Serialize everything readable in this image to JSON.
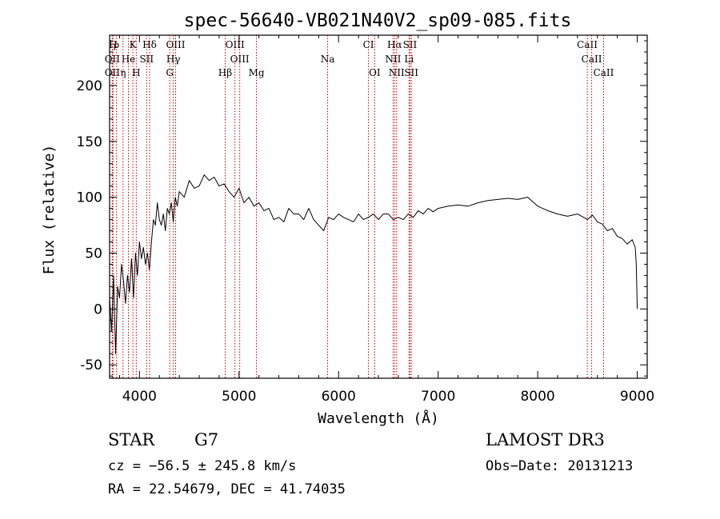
{
  "chart_data": {
    "type": "line",
    "title": "spec-56640-VB021N40V2_sp09-085.fits",
    "xlabel": "Wavelength (Å)",
    "ylabel": "Flux (relative)",
    "xlim": [
      3700,
      9100
    ],
    "ylim": [
      -62,
      245
    ],
    "x_ticks": [
      4000,
      5000,
      6000,
      7000,
      8000,
      9000
    ],
    "y_ticks": [
      -50,
      0,
      50,
      100,
      150,
      200
    ],
    "spectrum": {
      "name": "flux",
      "x": [
        3700,
        3720,
        3740,
        3760,
        3780,
        3800,
        3820,
        3840,
        3860,
        3880,
        3900,
        3920,
        3940,
        3960,
        3980,
        4000,
        4020,
        4040,
        4060,
        4080,
        4100,
        4120,
        4140,
        4160,
        4180,
        4200,
        4220,
        4240,
        4260,
        4280,
        4300,
        4320,
        4340,
        4360,
        4380,
        4400,
        4450,
        4500,
        4550,
        4600,
        4650,
        4700,
        4750,
        4800,
        4850,
        4900,
        4950,
        5000,
        5050,
        5100,
        5150,
        5200,
        5250,
        5300,
        5350,
        5400,
        5450,
        5500,
        5550,
        5600,
        5650,
        5700,
        5750,
        5800,
        5850,
        5900,
        5950,
        6000,
        6050,
        6100,
        6150,
        6200,
        6250,
        6300,
        6350,
        6400,
        6450,
        6500,
        6550,
        6600,
        6650,
        6700,
        6750,
        6800,
        6850,
        6900,
        6950,
        7000,
        7100,
        7200,
        7300,
        7400,
        7500,
        7600,
        7700,
        7800,
        7900,
        7950,
        8000,
        8100,
        8200,
        8300,
        8400,
        8500,
        8550,
        8600,
        8650,
        8700,
        8750,
        8800,
        8850,
        8900,
        8950,
        8980,
        8990,
        9000
      ],
      "y": [
        10,
        -20,
        30,
        -40,
        20,
        10,
        40,
        25,
        5,
        30,
        15,
        45,
        10,
        50,
        30,
        60,
        45,
        55,
        40,
        50,
        35,
        60,
        80,
        75,
        95,
        80,
        75,
        85,
        70,
        90,
        85,
        95,
        78,
        100,
        92,
        105,
        100,
        115,
        108,
        110,
        120,
        115,
        118,
        110,
        112,
        105,
        100,
        108,
        95,
        100,
        92,
        95,
        88,
        90,
        80,
        82,
        78,
        90,
        85,
        85,
        80,
        90,
        80,
        75,
        70,
        82,
        80,
        85,
        82,
        80,
        78,
        85,
        80,
        82,
        85,
        80,
        85,
        85,
        80,
        82,
        80,
        85,
        82,
        88,
        85,
        90,
        87,
        90,
        92,
        93,
        92,
        95,
        97,
        98,
        99,
        98,
        100,
        96,
        92,
        88,
        85,
        83,
        85,
        80,
        84,
        78,
        76,
        70,
        72,
        65,
        63,
        58,
        62,
        55,
        40,
        0
      ]
    },
    "line_markers": [
      {
        "label": "H",
        "wavelength": 3735,
        "tier": 1
      },
      {
        "label": "ρ",
        "wavelength": 3770,
        "tier": 1
      },
      {
        "label": "K",
        "wavelength": 3934,
        "tier": 1
      },
      {
        "label": "Hδ",
        "wavelength": 4102,
        "tier": 1
      },
      {
        "label": "OIII",
        "wavelength": 4363,
        "tier": 1
      },
      {
        "label": "OIII",
        "wavelength": 4959,
        "tier": 1
      },
      {
        "label": "CI",
        "wavelength": 6300,
        "tier": 1
      },
      {
        "label": "Hα",
        "wavelength": 6563,
        "tier": 1
      },
      {
        "label": "SII",
        "wavelength": 6717,
        "tier": 1
      },
      {
        "label": "CaII",
        "wavelength": 8498,
        "tier": 1
      },
      {
        "label": "OII",
        "wavelength": 3727,
        "tier": 2
      },
      {
        "label": "He",
        "wavelength": 3889,
        "tier": 2
      },
      {
        "label": "SII",
        "wavelength": 4072,
        "tier": 2
      },
      {
        "label": "Hγ",
        "wavelength": 4340,
        "tier": 2
      },
      {
        "label": "OIII",
        "wavelength": 5007,
        "tier": 2
      },
      {
        "label": "Na",
        "wavelength": 5890,
        "tier": 2
      },
      {
        "label": "NII",
        "wavelength": 6548,
        "tier": 2
      },
      {
        "label": "Li",
        "wavelength": 6708,
        "tier": 2
      },
      {
        "label": "CaII",
        "wavelength": 8542,
        "tier": 2
      },
      {
        "label": "OII",
        "wavelength": 3727,
        "tier": 3
      },
      {
        "label": "η",
        "wavelength": 3835,
        "tier": 3
      },
      {
        "label": "H",
        "wavelength": 3968,
        "tier": 3
      },
      {
        "label": "G",
        "wavelength": 4304,
        "tier": 3
      },
      {
        "label": "Hβ",
        "wavelength": 4861,
        "tier": 3
      },
      {
        "label": "Mg",
        "wavelength": 5175,
        "tier": 3
      },
      {
        "label": "OI",
        "wavelength": 6363,
        "tier": 3
      },
      {
        "label": "NII",
        "wavelength": 6583,
        "tier": 3
      },
      {
        "label": "SII",
        "wavelength": 6731,
        "tier": 3
      },
      {
        "label": "CaII",
        "wavelength": 8662,
        "tier": 3
      }
    ],
    "colors": {
      "spectrum": "#000000",
      "line_markers": "#cc0000",
      "axes": "#000000"
    }
  },
  "footer": {
    "object_class": "STAR",
    "subclass": "G7",
    "survey": "LAMOST DR3",
    "redshift": "cz = −56.5 ± 245.8 km/s",
    "obs_date": "Obs−Date: 20131213",
    "coords": "RA =  22.54679, DEC =  41.74035"
  }
}
